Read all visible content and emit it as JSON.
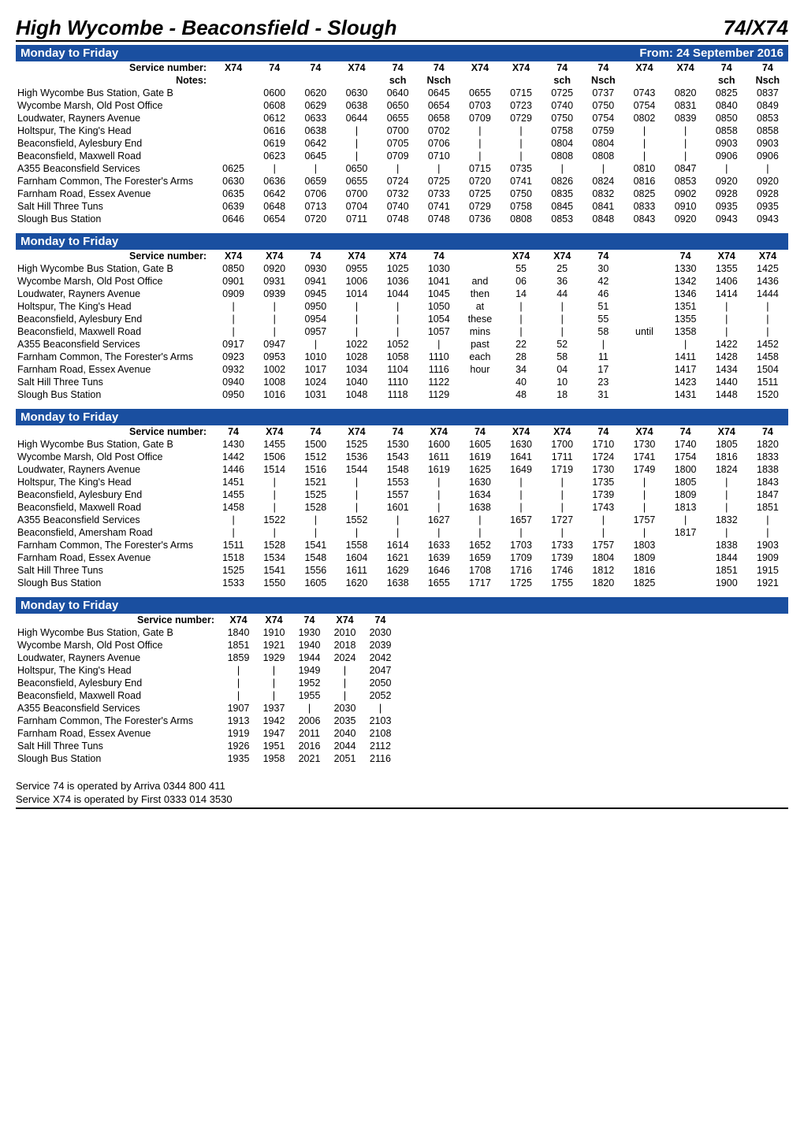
{
  "route_title": "High Wycombe - Beaconsfield - Slough",
  "route_number": "74/X74",
  "effective_from": "From: 24 September 2016",
  "day_label": "Monday to Friday",
  "service_number_label": "Service number:",
  "notes_label": "Notes:",
  "colors": {
    "bar_bg": "#1a4fa0",
    "bar_fg": "#ffffff",
    "rule": "#000000"
  },
  "stops": [
    "High Wycombe Bus Station, Gate B",
    "Wycombe Marsh, Old Post Office",
    "Loudwater, Rayners Avenue",
    "Holtspur, The King's Head",
    "Beaconsfield, Aylesbury End",
    "Beaconsfield, Maxwell Road",
    "A355 Beaconsfield Services",
    "Farnham Common, The Forester's Arms",
    "Farnham Road, Essex Avenue",
    "Salt Hill Three Tuns",
    "Slough Bus Station"
  ],
  "stops_block3": [
    "High Wycombe Bus Station, Gate B",
    "Wycombe Marsh, Old Post Office",
    "Loudwater, Rayners Avenue",
    "Holtspur, The King's Head",
    "Beaconsfield, Aylesbury End",
    "Beaconsfield, Maxwell Road",
    "A355 Beaconsfield Services",
    "Beaconsfield, Amersham Road",
    "Farnham Common, The Forester's Arms",
    "Farnham Road, Essex Avenue",
    "Salt Hill Three Tuns",
    "Slough Bus Station"
  ],
  "block1": {
    "service_numbers": [
      "X74",
      "74",
      "74",
      "X74",
      "74",
      "74",
      "X74",
      "X74",
      "74",
      "74",
      "X74",
      "X74",
      "74",
      "74"
    ],
    "notes": [
      "",
      "",
      "",
      "",
      "sch",
      "Nsch",
      "",
      "",
      "sch",
      "Nsch",
      "",
      "",
      "sch",
      "Nsch"
    ],
    "rows": [
      [
        "",
        "0600",
        "0620",
        "0630",
        "0640",
        "0645",
        "0655",
        "0715",
        "0725",
        "0737",
        "0743",
        "0820",
        "0825",
        "0837"
      ],
      [
        "",
        "0608",
        "0629",
        "0638",
        "0650",
        "0654",
        "0703",
        "0723",
        "0740",
        "0750",
        "0754",
        "0831",
        "0840",
        "0849"
      ],
      [
        "",
        "0612",
        "0633",
        "0644",
        "0655",
        "0658",
        "0709",
        "0729",
        "0750",
        "0754",
        "0802",
        "0839",
        "0850",
        "0853"
      ],
      [
        "",
        "0616",
        "0638",
        "|",
        "0700",
        "0702",
        "|",
        "|",
        "0758",
        "0759",
        "|",
        "|",
        "0858",
        "0858"
      ],
      [
        "",
        "0619",
        "0642",
        "|",
        "0705",
        "0706",
        "|",
        "|",
        "0804",
        "0804",
        "|",
        "|",
        "0903",
        "0903"
      ],
      [
        "",
        "0623",
        "0645",
        "|",
        "0709",
        "0710",
        "|",
        "|",
        "0808",
        "0808",
        "|",
        "|",
        "0906",
        "0906"
      ],
      [
        "0625",
        "|",
        "|",
        "0650",
        "|",
        "|",
        "0715",
        "0735",
        "|",
        "|",
        "0810",
        "0847",
        "|",
        "|"
      ],
      [
        "0630",
        "0636",
        "0659",
        "0655",
        "0724",
        "0725",
        "0720",
        "0741",
        "0826",
        "0824",
        "0816",
        "0853",
        "0920",
        "0920"
      ],
      [
        "0635",
        "0642",
        "0706",
        "0700",
        "0732",
        "0733",
        "0725",
        "0750",
        "0835",
        "0832",
        "0825",
        "0902",
        "0928",
        "0928"
      ],
      [
        "0639",
        "0648",
        "0713",
        "0704",
        "0740",
        "0741",
        "0729",
        "0758",
        "0845",
        "0841",
        "0833",
        "0910",
        "0935",
        "0935"
      ],
      [
        "0646",
        "0654",
        "0720",
        "0711",
        "0748",
        "0748",
        "0736",
        "0808",
        "0853",
        "0848",
        "0843",
        "0920",
        "0943",
        "0943"
      ]
    ]
  },
  "block2": {
    "service_numbers": [
      "X74",
      "X74",
      "74",
      "X74",
      "X74",
      "74",
      "",
      "X74",
      "X74",
      "74",
      "",
      "74",
      "X74",
      "X74"
    ],
    "rows": [
      [
        "0850",
        "0920",
        "0930",
        "0955",
        "1025",
        "1030",
        "",
        "55",
        "25",
        "30",
        "",
        "1330",
        "1355",
        "1425"
      ],
      [
        "0901",
        "0931",
        "0941",
        "1006",
        "1036",
        "1041",
        "and",
        "06",
        "36",
        "42",
        "",
        "1342",
        "1406",
        "1436"
      ],
      [
        "0909",
        "0939",
        "0945",
        "1014",
        "1044",
        "1045",
        "then",
        "14",
        "44",
        "46",
        "",
        "1346",
        "1414",
        "1444"
      ],
      [
        "|",
        "|",
        "0950",
        "|",
        "|",
        "1050",
        "at",
        "|",
        "|",
        "51",
        "",
        "1351",
        "|",
        "|"
      ],
      [
        "|",
        "|",
        "0954",
        "|",
        "|",
        "1054",
        "these",
        "|",
        "|",
        "55",
        "",
        "1355",
        "|",
        "|"
      ],
      [
        "|",
        "|",
        "0957",
        "|",
        "|",
        "1057",
        "mins",
        "|",
        "|",
        "58",
        "until",
        "1358",
        "|",
        "|"
      ],
      [
        "0917",
        "0947",
        "|",
        "1022",
        "1052",
        "|",
        "past",
        "22",
        "52",
        "|",
        "",
        "|",
        "1422",
        "1452"
      ],
      [
        "0923",
        "0953",
        "1010",
        "1028",
        "1058",
        "1110",
        "each",
        "28",
        "58",
        "11",
        "",
        "1411",
        "1428",
        "1458"
      ],
      [
        "0932",
        "1002",
        "1017",
        "1034",
        "1104",
        "1116",
        "hour",
        "34",
        "04",
        "17",
        "",
        "1417",
        "1434",
        "1504"
      ],
      [
        "0940",
        "1008",
        "1024",
        "1040",
        "1110",
        "1122",
        "",
        "40",
        "10",
        "23",
        "",
        "1423",
        "1440",
        "1511"
      ],
      [
        "0950",
        "1016",
        "1031",
        "1048",
        "1118",
        "1129",
        "",
        "48",
        "18",
        "31",
        "",
        "1431",
        "1448",
        "1520"
      ]
    ]
  },
  "block3": {
    "service_numbers": [
      "74",
      "X74",
      "74",
      "X74",
      "74",
      "X74",
      "74",
      "X74",
      "X74",
      "74",
      "X74",
      "74",
      "X74",
      "74"
    ],
    "rows": [
      [
        "1430",
        "1455",
        "1500",
        "1525",
        "1530",
        "1600",
        "1605",
        "1630",
        "1700",
        "1710",
        "1730",
        "1740",
        "1805",
        "1820"
      ],
      [
        "1442",
        "1506",
        "1512",
        "1536",
        "1543",
        "1611",
        "1619",
        "1641",
        "1711",
        "1724",
        "1741",
        "1754",
        "1816",
        "1833"
      ],
      [
        "1446",
        "1514",
        "1516",
        "1544",
        "1548",
        "1619",
        "1625",
        "1649",
        "1719",
        "1730",
        "1749",
        "1800",
        "1824",
        "1838"
      ],
      [
        "1451",
        "|",
        "1521",
        "|",
        "1553",
        "|",
        "1630",
        "|",
        "|",
        "1735",
        "|",
        "1805",
        "|",
        "1843"
      ],
      [
        "1455",
        "|",
        "1525",
        "|",
        "1557",
        "|",
        "1634",
        "|",
        "|",
        "1739",
        "|",
        "1809",
        "|",
        "1847"
      ],
      [
        "1458",
        "|",
        "1528",
        "|",
        "1601",
        "|",
        "1638",
        "|",
        "|",
        "1743",
        "|",
        "1813",
        "|",
        "1851"
      ],
      [
        "|",
        "1522",
        "|",
        "1552",
        "|",
        "1627",
        "|",
        "1657",
        "1727",
        "|",
        "1757",
        "|",
        "1832",
        "|"
      ],
      [
        "|",
        "|",
        "|",
        "|",
        "|",
        "|",
        "|",
        "|",
        "|",
        "|",
        "|",
        "1817",
        "|",
        "|"
      ],
      [
        "1511",
        "1528",
        "1541",
        "1558",
        "1614",
        "1633",
        "1652",
        "1703",
        "1733",
        "1757",
        "1803",
        "",
        "1838",
        "1903"
      ],
      [
        "1518",
        "1534",
        "1548",
        "1604",
        "1621",
        "1639",
        "1659",
        "1709",
        "1739",
        "1804",
        "1809",
        "",
        "1844",
        "1909"
      ],
      [
        "1525",
        "1541",
        "1556",
        "1611",
        "1629",
        "1646",
        "1708",
        "1716",
        "1746",
        "1812",
        "1816",
        "",
        "1851",
        "1915"
      ],
      [
        "1533",
        "1550",
        "1605",
        "1620",
        "1638",
        "1655",
        "1717",
        "1725",
        "1755",
        "1820",
        "1825",
        "",
        "1900",
        "1921"
      ]
    ]
  },
  "block4": {
    "service_numbers": [
      "X74",
      "X74",
      "74",
      "X74",
      "74"
    ],
    "rows": [
      [
        "1840",
        "1910",
        "1930",
        "2010",
        "2030"
      ],
      [
        "1851",
        "1921",
        "1940",
        "2018",
        "2039"
      ],
      [
        "1859",
        "1929",
        "1944",
        "2024",
        "2042"
      ],
      [
        "|",
        "|",
        "1949",
        "|",
        "2047"
      ],
      [
        "|",
        "|",
        "1952",
        "|",
        "2050"
      ],
      [
        "|",
        "|",
        "1955",
        "|",
        "2052"
      ],
      [
        "1907",
        "1937",
        "|",
        "2030",
        "|"
      ],
      [
        "1913",
        "1942",
        "2006",
        "2035",
        "2103"
      ],
      [
        "1919",
        "1947",
        "2011",
        "2040",
        "2108"
      ],
      [
        "1926",
        "1951",
        "2016",
        "2044",
        "2112"
      ],
      [
        "1935",
        "1958",
        "2021",
        "2051",
        "2116"
      ]
    ]
  },
  "footer": [
    "Service 74 is operated by Arriva 0344 800 411",
    "Service X74 is operated by First 0333 014 3530"
  ]
}
